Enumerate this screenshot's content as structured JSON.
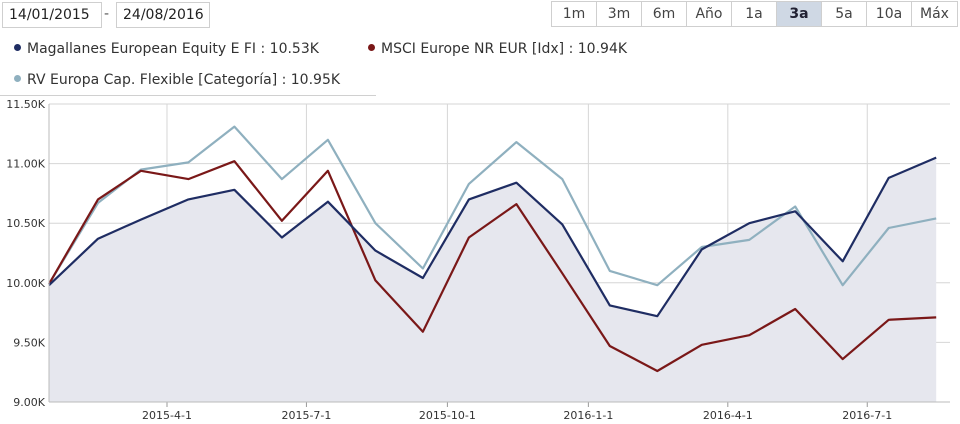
{
  "date_range": {
    "from": "14/01/2015",
    "separator": "-",
    "to": "24/08/2016"
  },
  "range_buttons": [
    "1m",
    "3m",
    "6m",
    "Año",
    "1a",
    "3a",
    "5a",
    "10a",
    "Máx"
  ],
  "active_range": "3a",
  "colors": {
    "series1": "#1f2d63",
    "series2": "#7a1818",
    "series3": "#8fb0bf",
    "area": "#e6e7ee",
    "grid": "#d6d6d6"
  },
  "legend": [
    {
      "label": "Magallanes European Equity E FI : 10.53K"
    },
    {
      "label": "MSCI Europe NR EUR [Idx] : 10.94K"
    },
    {
      "label": "RV Europa Cap. Flexible [Categoría] : 10.95K"
    }
  ],
  "chart_data": {
    "type": "line",
    "x": [
      "2015-01-14",
      "2015-02-15",
      "2015-03-15",
      "2015-04-15",
      "2015-05-15",
      "2015-06-15",
      "2015-07-15",
      "2015-08-15",
      "2015-09-15",
      "2015-10-15",
      "2015-11-15",
      "2015-12-15",
      "2016-01-15",
      "2016-02-15",
      "2016-03-15",
      "2016-04-15",
      "2016-05-15",
      "2016-06-15",
      "2016-07-15",
      "2016-08-15"
    ],
    "series": [
      {
        "name": "Magallanes European Equity E FI",
        "values": [
          9980,
          10370,
          10530,
          10700,
          10780,
          10380,
          10680,
          10270,
          10040,
          10700,
          10840,
          10490,
          9810,
          9720,
          10280,
          10500,
          10600,
          10180,
          10880,
          11050
        ]
      },
      {
        "name": "MSCI Europe NR EUR [Idx]",
        "values": [
          9990,
          10700,
          10940,
          10870,
          11020,
          10520,
          10940,
          10020,
          9590,
          10380,
          10660,
          10080,
          9470,
          9260,
          9480,
          9560,
          9780,
          9360,
          9690,
          9710
        ]
      },
      {
        "name": "RV Europa Cap. Flexible [Categoría]",
        "values": [
          9990,
          10670,
          10950,
          11010,
          11310,
          10870,
          11200,
          10500,
          10120,
          10830,
          11180,
          10870,
          10100,
          9980,
          10300,
          10360,
          10640,
          9980,
          10460,
          10540
        ]
      }
    ],
    "area_series": "Magallanes European Equity E FI",
    "x_ticks": [
      {
        "label": "2015-4-1",
        "date": "2015-04-01"
      },
      {
        "label": "2015-7-1",
        "date": "2015-07-01"
      },
      {
        "label": "2015-10-1",
        "date": "2015-10-01"
      },
      {
        "label": "2016-1-1",
        "date": "2016-01-01"
      },
      {
        "label": "2016-4-1",
        "date": "2016-04-01"
      },
      {
        "label": "2016-7-1",
        "date": "2016-07-01"
      }
    ],
    "y_ticks": [
      {
        "label": "9.00K",
        "value": 9000
      },
      {
        "label": "9.50K",
        "value": 9500
      },
      {
        "label": "10.00K",
        "value": 10000
      },
      {
        "label": "10.50K",
        "value": 10500
      },
      {
        "label": "11.00K",
        "value": 11000
      },
      {
        "label": "11.50K",
        "value": 11500
      }
    ],
    "ylim": [
      9000,
      11500
    ],
    "xlim": [
      "2015-01-14",
      "2016-08-24"
    ],
    "grid": true
  }
}
